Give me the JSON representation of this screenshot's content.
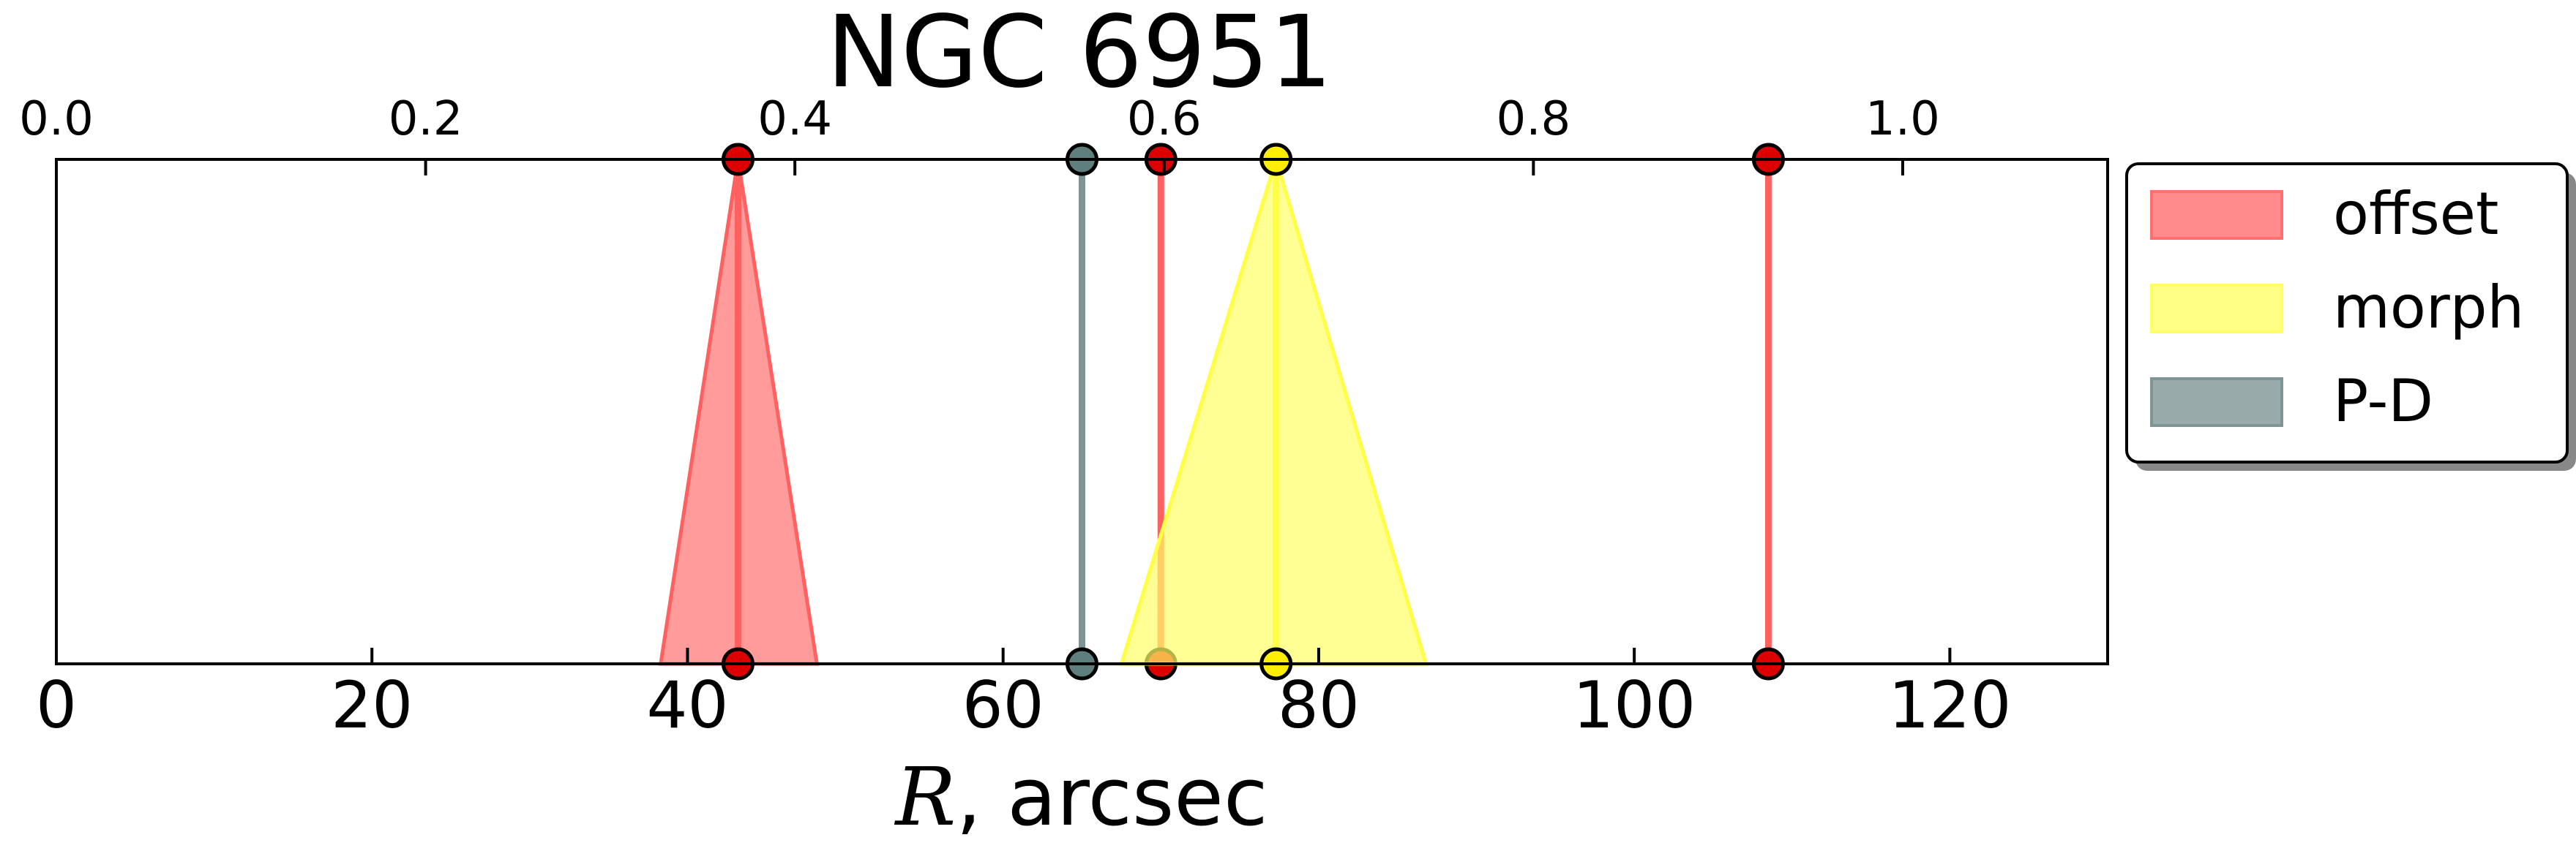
{
  "chart_data": {
    "type": "area",
    "title": "NGC 6951",
    "xlabel_var": "R",
    "xlabel_rest": ", arcsec",
    "xlim": [
      0,
      130
    ],
    "x_ticks": [
      0,
      20,
      40,
      60,
      80,
      100,
      120
    ],
    "x_tick_labels": [
      "0",
      "20",
      "40",
      "60",
      "80",
      "100",
      "120"
    ],
    "top_xlim": [
      0.0,
      1.111
    ],
    "top_ticks": [
      0.0,
      0.2,
      0.4,
      0.6,
      0.8,
      1.0
    ],
    "top_tick_labels": [
      "0.0",
      "0.2",
      "0.4",
      "0.6",
      "0.8",
      "1.0"
    ],
    "grid": false,
    "legend_position": "outside-right",
    "legend": [
      {
        "label": "offset",
        "color": "#ff6f6f"
      },
      {
        "label": "morph",
        "color": "#ffff66"
      },
      {
        "label": "P-D",
        "color": "#7f9595"
      }
    ],
    "series": [
      {
        "name": "offset",
        "center": 43.2,
        "low": 38.3,
        "high": 48.2,
        "fill": "#ff7070",
        "line": "#ff6060",
        "marker": "#dd0000"
      },
      {
        "name": "P-D",
        "center": 65.0,
        "low": 65.0,
        "high": 65.0,
        "fill": "#7f9595",
        "line": "#7f9595",
        "marker": "#5f7f7f"
      },
      {
        "name": "offset",
        "center": 70.0,
        "low": 70.0,
        "high": 70.0,
        "fill": "#ff7070",
        "line": "#ff6060",
        "marker": "#dd0000"
      },
      {
        "name": "morph",
        "center": 77.3,
        "low": 67.5,
        "high": 86.8,
        "fill": "#ffff66",
        "line": "#ffff44",
        "marker": "#ffee00"
      },
      {
        "name": "offset",
        "center": 108.5,
        "low": 108.5,
        "high": 108.5,
        "fill": "#ff7070",
        "line": "#ff6060",
        "marker": "#dd0000"
      }
    ]
  }
}
